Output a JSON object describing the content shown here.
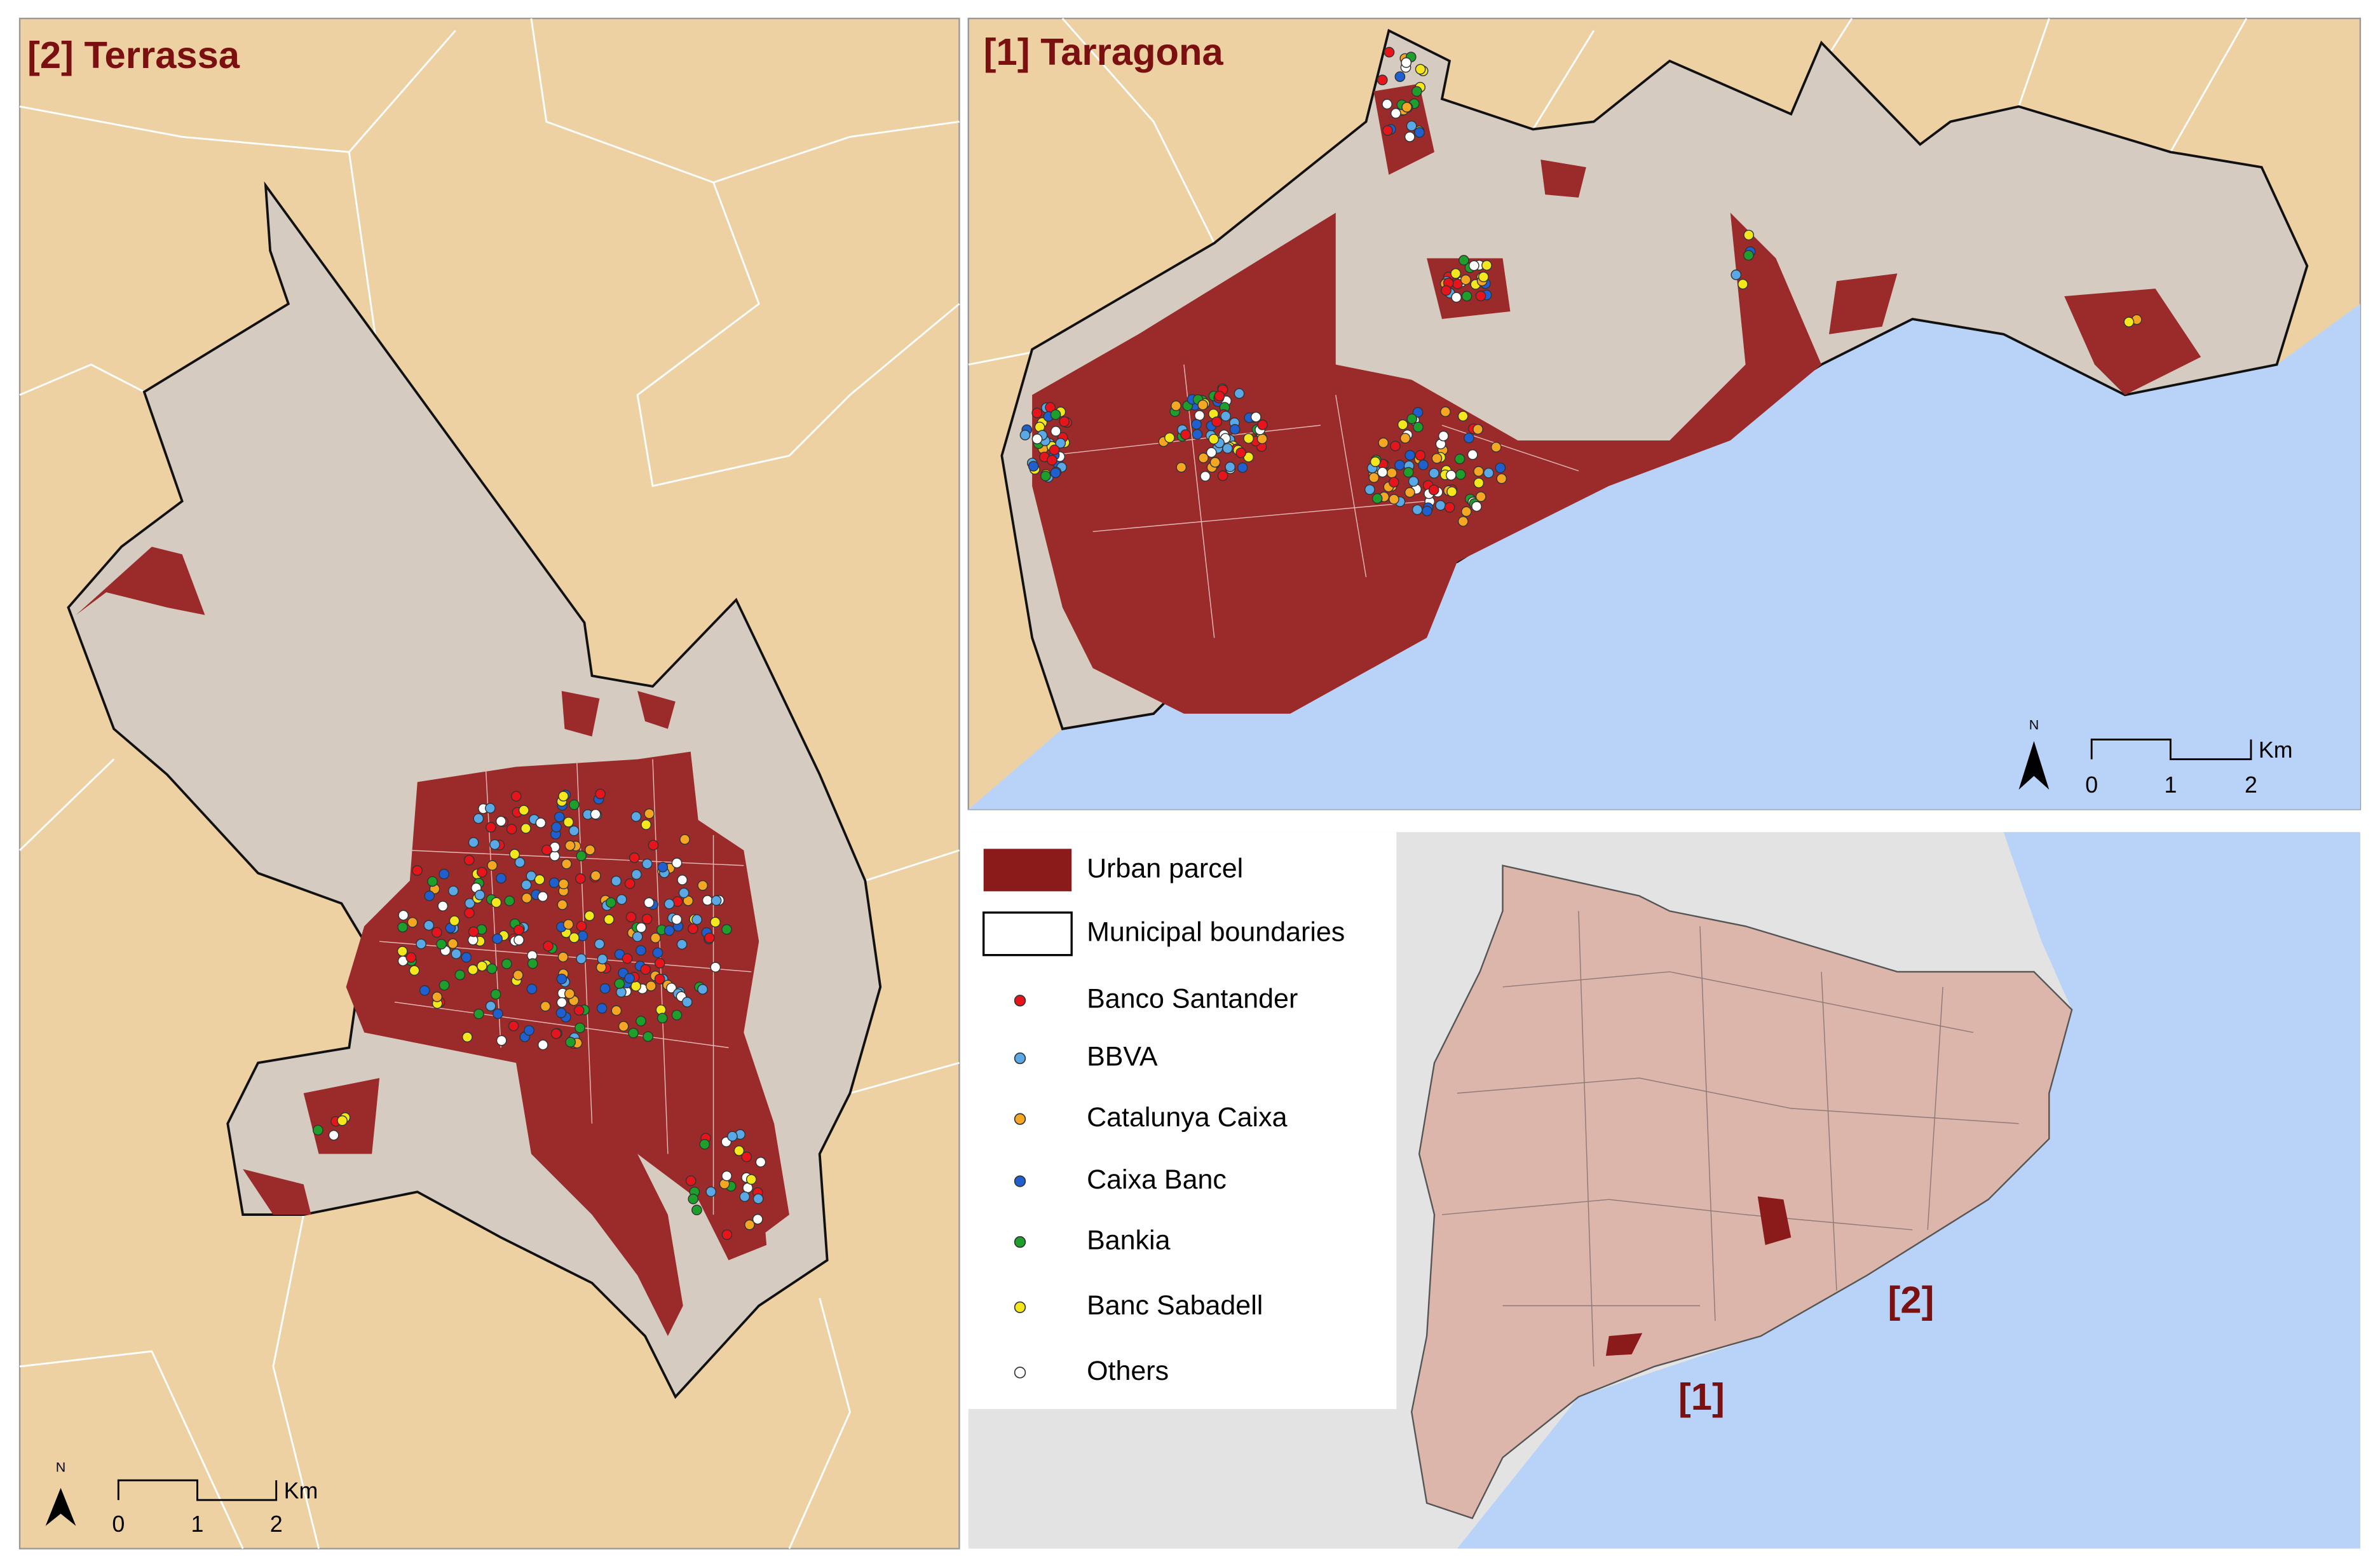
{
  "panels": [
    {
      "title": "[2] Terrassa",
      "north": "N",
      "scale_bar": {
        "labels": [
          "0",
          "1",
          "2"
        ],
        "unit": "Km"
      }
    },
    {
      "title": "[1] Tarragona",
      "north": "N",
      "scale_bar": {
        "labels": [
          "0",
          "1",
          "2"
        ],
        "unit": "Km"
      }
    }
  ],
  "legend": [
    {
      "label": "Urban parcel",
      "color": "#8b1a1a"
    },
    {
      "label": "Municipal boundaries",
      "color": "#ffffff"
    },
    {
      "label": "Banco Santander",
      "color": "#e8141b"
    },
    {
      "label": "BBVA",
      "color": "#5aa9e6"
    },
    {
      "label": "Catalunya Caixa",
      "color": "#f5a623"
    },
    {
      "label": "Caixa Banc",
      "color": "#1f5fcf"
    },
    {
      "label": "Bankia",
      "color": "#1e9e2a"
    },
    {
      "label": "Banc Sabadell",
      "color": "#f4e81c"
    },
    {
      "label": "Others",
      "color": "#ffffff"
    }
  ],
  "inset": {
    "labels": [
      "[1]",
      "[2]"
    ]
  }
}
